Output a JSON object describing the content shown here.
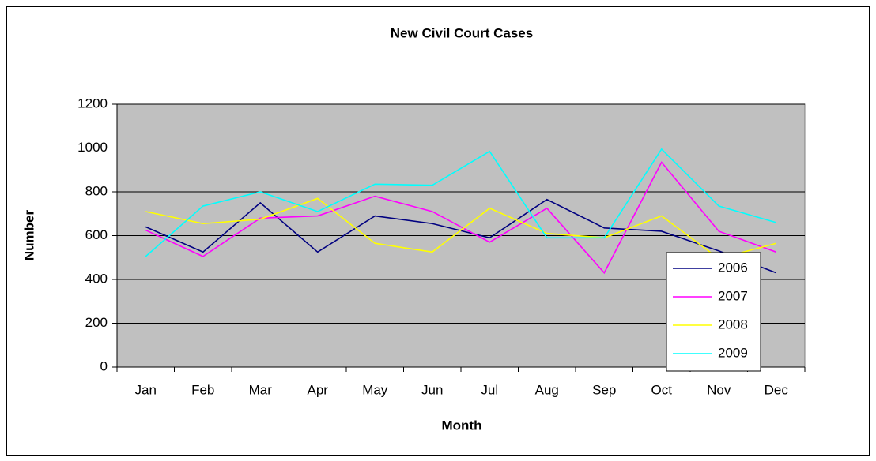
{
  "chart_data": {
    "type": "line",
    "title": "New Civil Court Cases",
    "x_label": "Month",
    "y_label": "Number",
    "categories": [
      "Jan",
      "Feb",
      "Mar",
      "Apr",
      "May",
      "Jun",
      "Jul",
      "Aug",
      "Sep",
      "Oct",
      "Nov",
      "Dec"
    ],
    "series": [
      {
        "name": "2006",
        "color": "#000080",
        "values": [
          640,
          525,
          750,
          525,
          690,
          655,
          590,
          765,
          635,
          620,
          530,
          430
        ]
      },
      {
        "name": "2007",
        "color": "#ff00ff",
        "values": [
          625,
          505,
          680,
          690,
          780,
          710,
          570,
          725,
          430,
          935,
          620,
          525
        ]
      },
      {
        "name": "2008",
        "color": "#ffff00",
        "values": [
          710,
          655,
          675,
          770,
          565,
          525,
          725,
          610,
          590,
          690,
          495,
          565
        ]
      },
      {
        "name": "2009",
        "color": "#00ffff",
        "values": [
          505,
          735,
          800,
          710,
          835,
          830,
          985,
          590,
          590,
          995,
          735,
          660
        ]
      }
    ],
    "ylim": [
      0,
      1200
    ],
    "yticks": [
      0,
      200,
      400,
      600,
      800,
      1000,
      1200
    ],
    "grid": true,
    "legend": "lower right",
    "plot_background": "#c0c0c0"
  }
}
